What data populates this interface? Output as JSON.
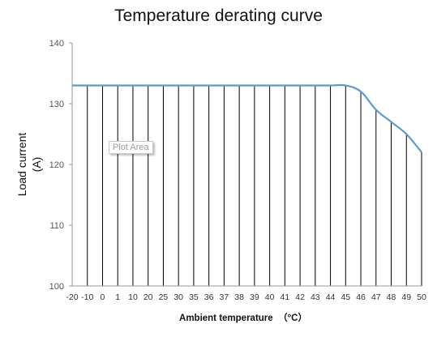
{
  "chart_data": {
    "type": "line",
    "title": "Temperature derating curve",
    "xlabel": "Ambient temperature  （°C）",
    "ylabel_line1": "Load current",
    "ylabel_line2": "(A)",
    "categories": [
      "-20",
      "-10",
      "0",
      "1",
      "10",
      "20",
      "25",
      "30",
      "35",
      "36",
      "37",
      "38",
      "39",
      "40",
      "41",
      "42",
      "43",
      "44",
      "45",
      "46",
      "47",
      "48",
      "49",
      "50"
    ],
    "series": [
      {
        "values": [
          133,
          133,
          133,
          133,
          133,
          133,
          133,
          133,
          133,
          133,
          133,
          133,
          133,
          133,
          133,
          133,
          133,
          133,
          133,
          132,
          129,
          127,
          125,
          122
        ]
      }
    ],
    "ylim": [
      100,
      140
    ],
    "yticks": [
      "100",
      "110",
      "120",
      "130",
      "140"
    ],
    "vertical_drop_lines": true,
    "line_color": "#5b9bd5",
    "drop_line_color": "#000000",
    "tooltip": "Plot Area"
  }
}
